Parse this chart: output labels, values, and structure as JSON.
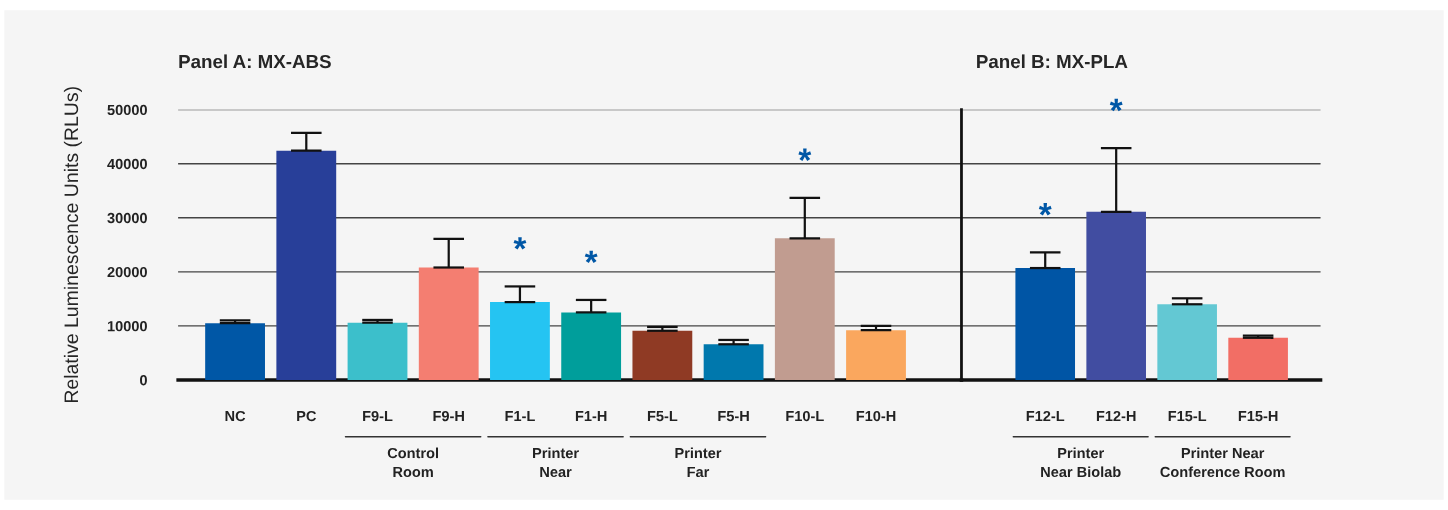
{
  "chart_data": [
    {
      "type": "bar",
      "title": "Panel A: MX-ABS",
      "ylabel": "Relative Luminescence Units (RLUs)",
      "categories": [
        "NC",
        "PC",
        "F9-L",
        "F9-H",
        "F1-L",
        "F1-H",
        "F5-L",
        "F5-H",
        "F10-L",
        "F10-H"
      ],
      "values": [
        10500,
        42400,
        10600,
        20800,
        14400,
        12500,
        9100,
        6600,
        26200,
        9200
      ],
      "errors": [
        [
          10500,
          11000
        ],
        [
          42400,
          45700
        ],
        [
          10600,
          11100
        ],
        [
          20800,
          26100
        ],
        [
          14400,
          17300
        ],
        [
          12500,
          14800
        ],
        [
          9100,
          9800
        ],
        [
          6600,
          7400
        ],
        [
          26200,
          33700
        ],
        [
          9200,
          10000
        ]
      ],
      "colors": [
        "#0057a6",
        "#283f99",
        "#3cbfcb",
        "#f47e71",
        "#25c4f2",
        "#009e9b",
        "#8f3a24",
        "#0078ad",
        "#c19c90",
        "#faa75e"
      ],
      "ylim": [
        0,
        50000
      ],
      "yticks": [
        0,
        10000,
        20000,
        30000,
        40000,
        50000
      ],
      "grid": "y",
      "annotations": [
        {
          "text": "*",
          "x": "F1-L",
          "y": 17300
        },
        {
          "text": "*",
          "x": "F1-H",
          "y": 14800
        },
        {
          "text": "*",
          "x": "F10-L",
          "y": 33700
        },
        "Control\nRoom",
        "Printer\nNear",
        "Printer\nFar"
      ]
    },
    {
      "type": "bar",
      "title": "Panel B: MX-PLA",
      "categories": [
        "F12-L",
        "F12-H",
        "F15-L",
        "F15-H"
      ],
      "values": [
        20700,
        31100,
        14000,
        7800
      ],
      "errors": [
        [
          20700,
          23600
        ],
        [
          31100,
          42900
        ],
        [
          14000,
          15100
        ],
        [
          7800,
          8200
        ]
      ],
      "colors": [
        "#0055a5",
        "#414da1",
        "#63c8d3",
        "#f26e65"
      ],
      "ylim": [
        0,
        50000
      ],
      "yticks": [
        0,
        10000,
        20000,
        30000,
        40000,
        50000
      ],
      "grid": "y",
      "tick_labels": "x",
      "annotations": [
        {
          "text": "*",
          "x": "F12-L",
          "y": 23600
        },
        {
          "text": "*",
          "x": "F12-H",
          "y": 42900
        },
        "Printer\nNear Biolab",
        "Printer Near\nConference Room"
      ]
    }
  ]
}
